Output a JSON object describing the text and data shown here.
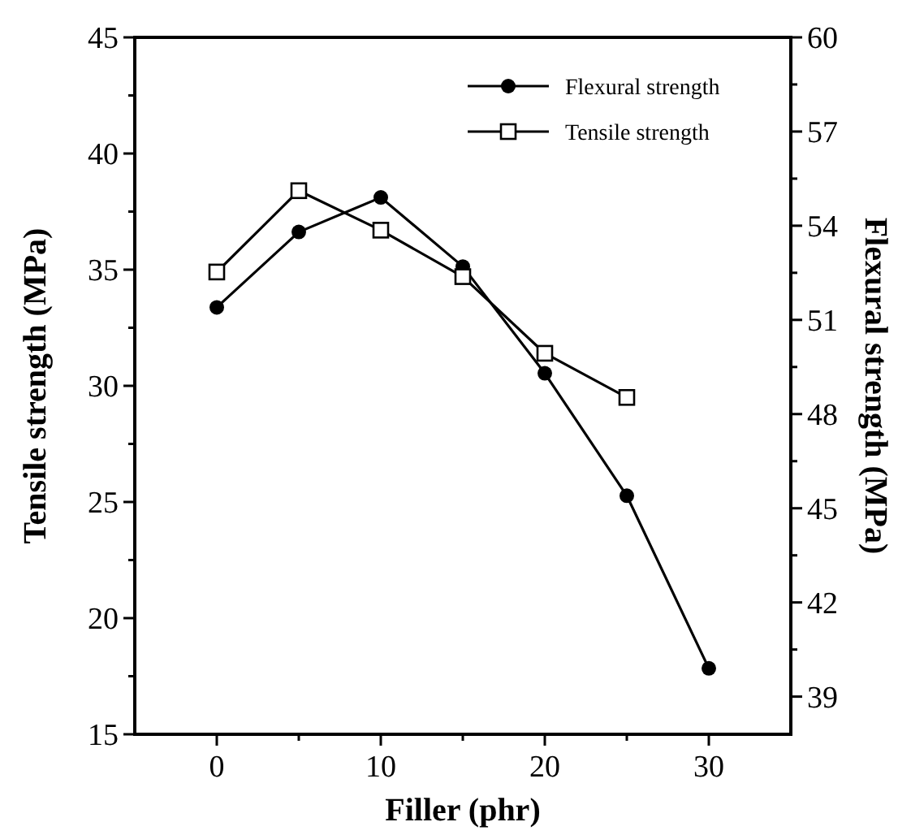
{
  "chart_data": {
    "type": "line",
    "xlabel": "Filler (phr)",
    "ylabel": "Tensile strength (MPa)",
    "y2label": "Flexural strength (MPa)",
    "xlim": [
      -5,
      35
    ],
    "xticks": [
      0,
      {
        "value": 5,
        "label": null
      },
      10,
      {
        "value": 15,
        "label": null
      },
      20,
      {
        "value": 25,
        "label": null
      },
      30
    ],
    "ylim": [
      15,
      45
    ],
    "yticks": [
      15,
      {
        "value": 17.5,
        "label": null
      },
      20,
      {
        "value": 22.5,
        "label": null
      },
      25,
      {
        "value": 27.5,
        "label": null
      },
      30,
      {
        "value": 32.5,
        "label": null
      },
      35,
      {
        "value": 37.5,
        "label": null
      },
      40,
      {
        "value": 42.5,
        "label": null
      },
      45
    ],
    "y2lim": [
      37.8,
      60
    ],
    "y2ticks": [
      39,
      {
        "value": 40.5,
        "label": null
      },
      42,
      {
        "value": 43.5,
        "label": null
      },
      45,
      {
        "value": 46.5,
        "label": null
      },
      48,
      {
        "value": 49.5,
        "label": null
      },
      51,
      {
        "value": 52.5,
        "label": null
      },
      54,
      {
        "value": 55.5,
        "label": null
      },
      57,
      {
        "value": 58.5,
        "label": null
      },
      60
    ],
    "legend": "top right",
    "line_style": "solid",
    "grid": false,
    "series": [
      {
        "name": "Flexural strength",
        "axis": "y2",
        "marker": "circle",
        "color": "#000000",
        "x": [
          0,
          5,
          10,
          15,
          20,
          25,
          30
        ],
        "values": [
          51.4,
          53.8,
          54.9,
          52.7,
          49.3,
          45.4,
          39.9
        ]
      },
      {
        "name": "Tensile strength",
        "marker": "square",
        "color": "#000000",
        "x": [
          0,
          5,
          10,
          15,
          20,
          25
        ],
        "values": [
          34.9,
          38.4,
          36.7,
          34.7,
          31.4,
          29.5
        ]
      }
    ]
  }
}
